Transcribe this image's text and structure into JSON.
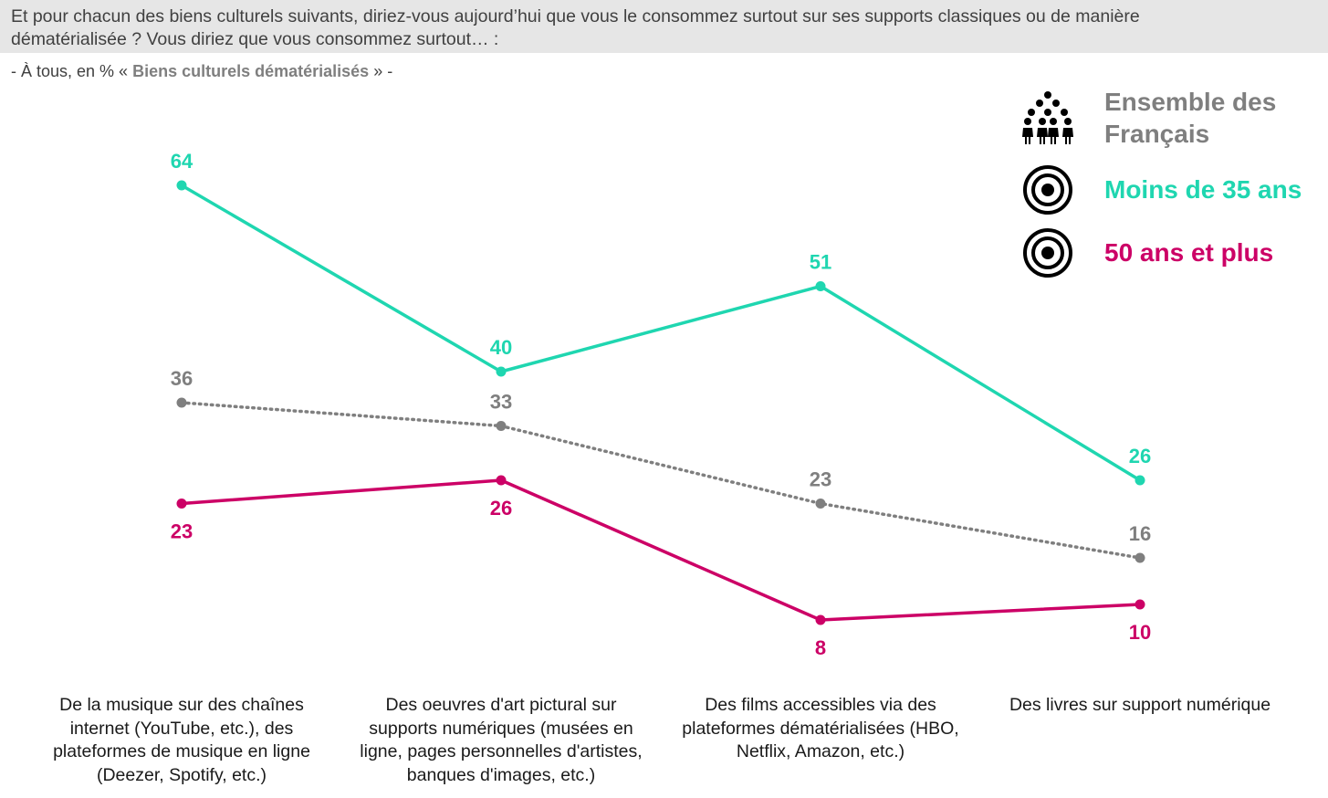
{
  "question": {
    "line1": "Et pour chacun des biens culturels suivants, diriez-vous aujourd’hui que vous le consommez surtout sur ses supports classiques ou de manière",
    "line2": "dématérialisée ? Vous diriez que vous consommez surtout… :"
  },
  "subtitle": {
    "prefix": "- À tous, en % « ",
    "bold": "Biens culturels dématérialisés",
    "suffix": " » -"
  },
  "legend": [
    {
      "label_line1": "Ensemble des",
      "label_line2": "Français",
      "color": "#7f7f7f",
      "icon": "people-group-icon"
    },
    {
      "label_line1": "Moins de 35 ans",
      "label_line2": "",
      "color": "#1fd6b0",
      "icon": "target-icon"
    },
    {
      "label_line1": "50 ans et plus",
      "label_line2": "",
      "color": "#cc0066",
      "icon": "target-icon"
    }
  ],
  "chart_data": {
    "type": "line",
    "categories": [
      "De la musique sur des chaînes internet (YouTube, etc.), des plateformes de musique en ligne (Deezer, Spotify, etc.)",
      "Des oeuvres d'art pictural sur supports numériques (musées en ligne, pages personnelles d'artistes, banques d'images, etc.)",
      "Des films accessibles via des plateformes dématérialisées (HBO, Netflix, Amazon, etc.)",
      "Des livres sur support numérique"
    ],
    "category_lines": [
      [
        "De la musique sur des chaînes",
        "internet (YouTube, etc.), des",
        "plateformes de musique en ligne",
        "(Deezer, Spotify, etc.)"
      ],
      [
        "Des oeuvres d'art pictural sur",
        "supports numériques (musées en",
        "ligne, pages personnelles d'artistes,",
        "banques d'images, etc.)"
      ],
      [
        "Des films accessibles via des",
        "plateformes dématérialisées (HBO,",
        "Netflix, Amazon, etc.)"
      ],
      [
        "Des livres sur support numérique"
      ]
    ],
    "series": [
      {
        "name": "Moins de 35 ans",
        "values": [
          64,
          40,
          51,
          26
        ],
        "color": "#1fd6b0",
        "style": "solid",
        "label_position": "above"
      },
      {
        "name": "Ensemble des Français",
        "values": [
          36,
          33,
          23,
          16
        ],
        "color": "#7f7f7f",
        "style": "dotted",
        "label_position": "above"
      },
      {
        "name": "50 ans et plus",
        "values": [
          23,
          26,
          8,
          10
        ],
        "color": "#cc0066",
        "style": "solid",
        "label_position": "below"
      }
    ],
    "ylim": [
      0,
      70
    ],
    "grid": false,
    "legend_position": "top-right",
    "title": "",
    "xlabel": "",
    "ylabel": ""
  }
}
